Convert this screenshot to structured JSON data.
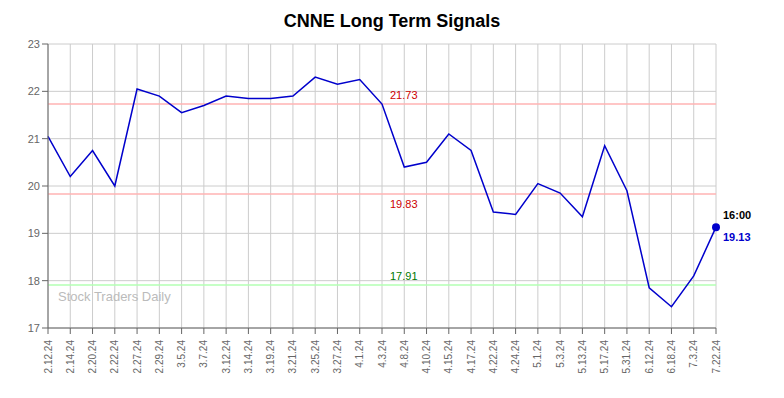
{
  "chart_data": {
    "type": "line",
    "title": "CNNE Long Term Signals",
    "categories": [
      "2.12.24",
      "2.14.24",
      "2.20.24",
      "2.22.24",
      "2.27.24",
      "2.29.24",
      "3.5.24",
      "3.7.24",
      "3.12.24",
      "3.14.24",
      "3.19.24",
      "3.21.24",
      "3.25.24",
      "3.27.24",
      "4.1.24",
      "4.3.24",
      "4.8.24",
      "4.10.24",
      "4.15.24",
      "4.17.24",
      "4.22.24",
      "4.24.24",
      "5.1.24",
      "5.3.24",
      "5.13.24",
      "5.17.24",
      "5.31.24",
      "6.12.24",
      "6.18.24",
      "7.3.24",
      "7.22.24"
    ],
    "values": [
      21.05,
      20.2,
      20.75,
      20.0,
      22.05,
      21.9,
      21.55,
      21.7,
      21.9,
      21.85,
      21.85,
      21.9,
      22.3,
      22.15,
      22.25,
      21.73,
      20.4,
      20.5,
      21.1,
      20.75,
      19.45,
      19.4,
      20.05,
      19.85,
      19.35,
      20.85,
      19.9,
      17.85,
      17.45,
      18.1,
      19.13
    ],
    "color": "#0000cc",
    "ylim": [
      17.0,
      23.0
    ],
    "yticks": [
      17,
      18,
      19,
      20,
      21,
      22,
      23
    ],
    "grid": true,
    "hlines": [
      {
        "value": 21.73,
        "color": "#ffb3b3",
        "label": "21.73",
        "label_color": "#cc0000",
        "x": "4.3.24"
      },
      {
        "value": 19.83,
        "color": "#ffb3b3",
        "label": "19.83",
        "label_color": "#cc0000",
        "x": "4.3.24"
      },
      {
        "value": 17.91,
        "color": "#b3ffb3",
        "label": "17.91",
        "label_color": "#007700",
        "x": "4.3.24"
      }
    ],
    "annotations": [
      {
        "text": "16:00",
        "color": "#000000"
      },
      {
        "text": "19.13",
        "color": "#0000cc"
      }
    ],
    "watermark": "Stock Traders Daily"
  }
}
